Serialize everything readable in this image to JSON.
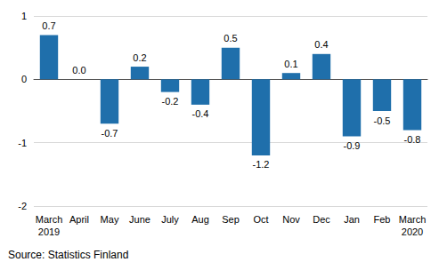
{
  "chart_data": {
    "type": "bar",
    "categories": [
      "March\n2019",
      "April",
      "May",
      "June",
      "July",
      "Aug",
      "Sep",
      "Oct",
      "Nov",
      "Dec",
      "Jan",
      "Feb",
      "March\n2020"
    ],
    "values": [
      0.7,
      0.0,
      -0.7,
      0.2,
      -0.2,
      -0.4,
      0.5,
      -1.2,
      0.1,
      0.4,
      -0.9,
      -0.5,
      -0.8
    ],
    "value_labels": [
      "0.7",
      "0.0",
      "-0.7",
      "0.2",
      "-0.2",
      "-0.4",
      "0.5",
      "-1.2",
      "0.1",
      "0.4",
      "-0.9",
      "-0.5",
      "-0.8"
    ],
    "color": "#1f6fab",
    "ylim": [
      -2,
      1
    ],
    "yticks": [
      -2,
      -1,
      0,
      1
    ],
    "grid": true,
    "data_labels": true,
    "source": "Source: Statistics Finland"
  }
}
